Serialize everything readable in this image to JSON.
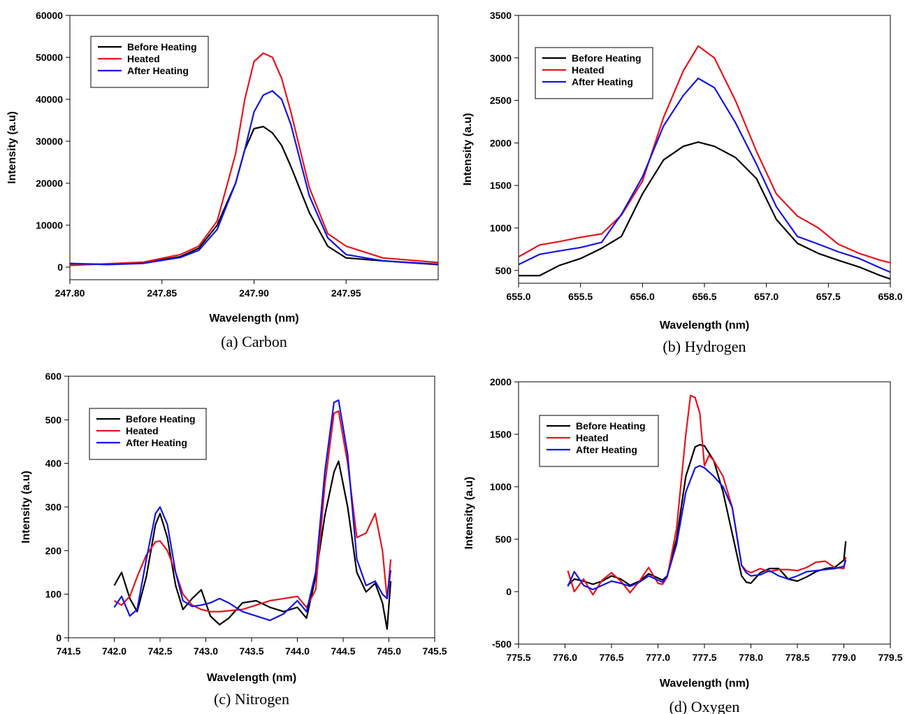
{
  "chart_data": [
    {
      "type": "line",
      "caption": "(a)  Carbon",
      "xlabel": "Wavelength (nm)",
      "ylabel": "Intensity (a.u)",
      "xlim": [
        247.8,
        248.0
      ],
      "ylim": [
        -3000,
        60000
      ],
      "xticks": [
        247.8,
        247.85,
        247.9,
        247.95
      ],
      "xtick_labels": [
        "247.80",
        "247.85",
        "247.90",
        "247.95"
      ],
      "yticks": [
        0,
        10000,
        20000,
        30000,
        40000,
        50000,
        60000
      ],
      "ytick_labels": [
        "0",
        "10000",
        "20000",
        "30000",
        "40000",
        "50000",
        "60000"
      ],
      "legend": "top-left",
      "grid": false,
      "series": [
        {
          "name": "Before Heating",
          "color": "#000000",
          "x": [
            247.8,
            247.82,
            247.84,
            247.86,
            247.87,
            247.88,
            247.89,
            247.895,
            247.9,
            247.905,
            247.91,
            247.915,
            247.92,
            247.93,
            247.94,
            247.95,
            247.97,
            248.0
          ],
          "y": [
            800,
            700,
            1000,
            2500,
            4500,
            10000,
            20000,
            28000,
            33000,
            33500,
            32000,
            29000,
            24000,
            13000,
            5000,
            2200,
            1500,
            600
          ]
        },
        {
          "name": "Heated",
          "color": "#e8141c",
          "x": [
            247.8,
            247.82,
            247.84,
            247.86,
            247.87,
            247.88,
            247.89,
            247.895,
            247.9,
            247.905,
            247.91,
            247.915,
            247.92,
            247.93,
            247.94,
            247.95,
            247.97,
            248.0
          ],
          "y": [
            400,
            800,
            1200,
            3000,
            5000,
            11000,
            27000,
            40000,
            49000,
            51000,
            50000,
            45000,
            37000,
            19000,
            8000,
            5000,
            2200,
            1100
          ]
        },
        {
          "name": "After Heating",
          "color": "#1414e6",
          "x": [
            247.8,
            247.82,
            247.84,
            247.86,
            247.87,
            247.88,
            247.89,
            247.895,
            247.9,
            247.905,
            247.91,
            247.915,
            247.92,
            247.93,
            247.94,
            247.95,
            247.97,
            248.0
          ],
          "y": [
            900,
            600,
            900,
            2300,
            4000,
            9000,
            20000,
            28000,
            37000,
            41000,
            42000,
            40000,
            34000,
            17000,
            7000,
            3000,
            1500,
            700
          ]
        }
      ]
    },
    {
      "type": "line",
      "caption": "(b)  Hydrogen",
      "xlabel": "Wavelength (nm)",
      "ylabel": "Intensity (a.u)",
      "xlim": [
        655.0,
        658.0
      ],
      "ylim": [
        350,
        3500
      ],
      "xticks": [
        655.0,
        655.5,
        656.0,
        656.5,
        657.0,
        657.5,
        658.0
      ],
      "xtick_labels": [
        "655.0",
        "655.5",
        "656.0",
        "656.5",
        "657.0",
        "657.5",
        "658.0"
      ],
      "yticks": [
        500,
        1000,
        1500,
        2000,
        2500,
        3000,
        3500
      ],
      "ytick_labels": [
        "500",
        "1000",
        "1500",
        "2000",
        "2500",
        "3000",
        "3500"
      ],
      "legend": "top-left",
      "grid": false,
      "series": [
        {
          "name": "Before Heating",
          "color": "#000000",
          "x": [
            655.0,
            655.17,
            655.33,
            655.5,
            655.67,
            655.83,
            656.0,
            656.17,
            656.33,
            656.45,
            656.58,
            656.75,
            656.92,
            657.08,
            657.25,
            657.42,
            657.58,
            657.75,
            657.92,
            658.0
          ],
          "y": [
            440,
            440,
            560,
            640,
            760,
            900,
            1400,
            1800,
            1960,
            2010,
            1960,
            1830,
            1580,
            1100,
            820,
            700,
            620,
            540,
            440,
            400
          ]
        },
        {
          "name": "Heated",
          "color": "#e8141c",
          "x": [
            655.0,
            655.17,
            655.33,
            655.5,
            655.67,
            655.83,
            656.0,
            656.17,
            656.33,
            656.45,
            656.58,
            656.75,
            656.92,
            657.08,
            657.25,
            657.42,
            657.58,
            657.75,
            657.92,
            658.0
          ],
          "y": [
            660,
            800,
            840,
            890,
            930,
            1150,
            1550,
            2300,
            2850,
            3140,
            3000,
            2500,
            1900,
            1400,
            1140,
            1000,
            810,
            700,
            620,
            590
          ]
        },
        {
          "name": "After Heating",
          "color": "#1414e6",
          "x": [
            655.0,
            655.17,
            655.33,
            655.5,
            655.67,
            655.83,
            656.0,
            656.17,
            656.33,
            656.45,
            656.58,
            656.75,
            656.92,
            657.08,
            657.25,
            657.42,
            657.58,
            657.75,
            657.92,
            658.0
          ],
          "y": [
            570,
            690,
            730,
            770,
            830,
            1160,
            1600,
            2200,
            2560,
            2760,
            2650,
            2240,
            1750,
            1250,
            900,
            810,
            720,
            640,
            530,
            480
          ]
        }
      ]
    },
    {
      "type": "line",
      "caption": "(c)  Nitrogen",
      "xlabel": "Wavelength (nm)",
      "ylabel": "Intensity (a.u)",
      "xlim": [
        741.5,
        745.5
      ],
      "ylim": [
        0,
        600
      ],
      "xticks": [
        741.5,
        742.0,
        742.5,
        743.0,
        743.5,
        744.0,
        744.5,
        745.0,
        745.5
      ],
      "xtick_labels": [
        "741.5",
        "742.0",
        "742.5",
        "743.0",
        "743.5",
        "744.0",
        "744.5",
        "745.0",
        "745.5"
      ],
      "yticks": [
        0,
        100,
        200,
        300,
        400,
        500,
        600
      ],
      "ytick_labels": [
        "0",
        "100",
        "200",
        "300",
        "400",
        "500",
        "600"
      ],
      "legend": "top-left",
      "grid": false,
      "series": [
        {
          "name": "Before Heating",
          "color": "#000000",
          "x": [
            742.0,
            742.08,
            742.17,
            742.25,
            742.35,
            742.45,
            742.5,
            742.58,
            742.67,
            742.75,
            742.85,
            742.95,
            743.05,
            743.15,
            743.25,
            743.4,
            743.55,
            743.7,
            743.85,
            744.0,
            744.1,
            744.2,
            744.3,
            744.4,
            744.45,
            744.55,
            744.65,
            744.75,
            744.85,
            744.93,
            744.98,
            745.02
          ],
          "y": [
            120,
            150,
            90,
            60,
            140,
            260,
            285,
            230,
            120,
            65,
            90,
            110,
            50,
            30,
            45,
            80,
            85,
            70,
            60,
            70,
            45,
            140,
            280,
            380,
            405,
            300,
            150,
            105,
            125,
            80,
            20,
            130
          ]
        },
        {
          "name": "Heated",
          "color": "#e8141c",
          "x": [
            742.0,
            742.08,
            742.17,
            742.25,
            742.35,
            742.45,
            742.5,
            742.58,
            742.67,
            742.75,
            742.85,
            742.95,
            743.05,
            743.15,
            743.25,
            743.4,
            743.55,
            743.7,
            743.85,
            744.0,
            744.1,
            744.2,
            744.3,
            744.4,
            744.45,
            744.55,
            744.65,
            744.75,
            744.85,
            744.93,
            744.98,
            745.02
          ],
          "y": [
            85,
            75,
            95,
            140,
            190,
            220,
            222,
            200,
            150,
            100,
            75,
            65,
            60,
            60,
            62,
            65,
            75,
            85,
            90,
            95,
            70,
            110,
            350,
            515,
            520,
            400,
            230,
            240,
            285,
            200,
            90,
            180
          ]
        },
        {
          "name": "After Heating",
          "color": "#1414e6",
          "x": [
            742.0,
            742.08,
            742.17,
            742.25,
            742.35,
            742.45,
            742.5,
            742.58,
            742.67,
            742.75,
            742.85,
            742.95,
            743.05,
            743.15,
            743.25,
            743.4,
            743.55,
            743.7,
            743.85,
            744.0,
            744.1,
            744.2,
            744.3,
            744.4,
            744.45,
            744.55,
            744.65,
            744.75,
            744.85,
            744.93,
            744.98,
            745.02
          ],
          "y": [
            70,
            95,
            50,
            65,
            180,
            285,
            300,
            260,
            150,
            85,
            72,
            75,
            80,
            90,
            80,
            60,
            50,
            40,
            55,
            85,
            60,
            150,
            380,
            540,
            545,
            420,
            180,
            120,
            130,
            100,
            90,
            155
          ]
        }
      ]
    },
    {
      "type": "line",
      "caption": "(d)  Oxygen",
      "xlabel": "Wavelength (nm)",
      "ylabel": "Intensity (a.u)",
      "xlim": [
        775.5,
        779.5
      ],
      "ylim": [
        -500,
        2000
      ],
      "xticks": [
        775.5,
        776.0,
        776.5,
        777.0,
        777.5,
        778.0,
        778.5,
        779.0,
        779.5
      ],
      "xtick_labels": [
        "775.5",
        "776.0",
        "776.5",
        "777.0",
        "777.5",
        "778.0",
        "778.5",
        "779.0",
        "779.5"
      ],
      "yticks": [
        -500,
        0,
        500,
        1000,
        1500,
        2000
      ],
      "ytick_labels": [
        "-500",
        "0",
        "500",
        "1000",
        "1500",
        "2000"
      ],
      "legend": "top-left",
      "grid": false,
      "series": [
        {
          "name": "Before Heating",
          "color": "#000000",
          "x": [
            776.03,
            776.1,
            776.2,
            776.3,
            776.4,
            776.5,
            776.6,
            776.7,
            776.8,
            776.9,
            777.0,
            777.05,
            777.1,
            777.2,
            777.3,
            777.4,
            777.45,
            777.5,
            777.6,
            777.7,
            777.8,
            777.9,
            777.95,
            778.0,
            778.1,
            778.2,
            778.3,
            778.4,
            778.5,
            778.6,
            778.7,
            778.8,
            778.9,
            779.0,
            779.02
          ],
          "y": [
            60,
            120,
            100,
            70,
            100,
            150,
            120,
            60,
            100,
            170,
            130,
            110,
            150,
            500,
            1100,
            1380,
            1400,
            1390,
            1250,
            950,
            550,
            150,
            90,
            80,
            180,
            220,
            220,
            120,
            100,
            140,
            190,
            220,
            230,
            300,
            480
          ]
        },
        {
          "name": "Heated",
          "color": "#e8141c",
          "x": [
            776.03,
            776.1,
            776.2,
            776.3,
            776.4,
            776.5,
            776.6,
            776.7,
            776.8,
            776.9,
            777.0,
            777.05,
            777.1,
            777.2,
            777.3,
            777.35,
            777.4,
            777.45,
            777.5,
            777.55,
            777.6,
            777.7,
            777.8,
            777.9,
            777.95,
            778.0,
            778.1,
            778.2,
            778.3,
            778.4,
            778.5,
            778.6,
            778.7,
            778.8,
            778.9,
            779.0,
            779.02
          ],
          "y": [
            200,
            0,
            120,
            -30,
            110,
            180,
            100,
            -10,
            100,
            230,
            80,
            70,
            140,
            600,
            1500,
            1870,
            1850,
            1700,
            1200,
            1300,
            1250,
            1100,
            800,
            250,
            200,
            180,
            220,
            190,
            210,
            210,
            200,
            230,
            280,
            290,
            230,
            220,
            330
          ]
        },
        {
          "name": "After Heating",
          "color": "#1414e6",
          "x": [
            776.03,
            776.1,
            776.2,
            776.3,
            776.4,
            776.5,
            776.6,
            776.7,
            776.8,
            776.9,
            777.0,
            777.05,
            777.1,
            777.2,
            777.3,
            777.4,
            777.45,
            777.5,
            777.6,
            777.7,
            777.8,
            777.9,
            777.95,
            778.0,
            778.1,
            778.2,
            778.3,
            778.4,
            778.5,
            778.6,
            778.7,
            778.8,
            778.9,
            779.0,
            779.02
          ],
          "y": [
            50,
            190,
            60,
            20,
            60,
            100,
            80,
            50,
            90,
            150,
            110,
            90,
            150,
            450,
            950,
            1180,
            1200,
            1180,
            1100,
            1000,
            800,
            250,
            180,
            150,
            160,
            200,
            150,
            120,
            150,
            190,
            200,
            210,
            220,
            240,
            300
          ]
        }
      ]
    }
  ]
}
